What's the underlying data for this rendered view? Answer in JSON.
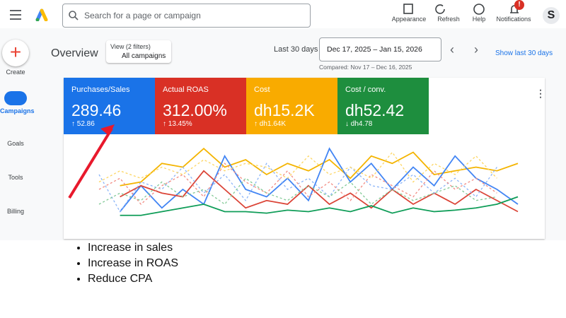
{
  "header": {
    "search_placeholder": "Search for a page or campaign",
    "actions": [
      "Appearance",
      "Refresh",
      "Help",
      "Notifications"
    ],
    "notification_badge": "!",
    "avatar": "S"
  },
  "nav": [
    "Create",
    "Campaigns",
    "Goals",
    "Tools",
    "Billing"
  ],
  "toolbar": {
    "title": "Overview",
    "filter_label": "View (2 filters)",
    "filter_value": "All campaigns",
    "range_label": "Last 30 days",
    "date_range": "Dec 17, 2025 – Jan 15, 2026",
    "compared": "Compared: Nov 17 – Dec 16, 2025",
    "show_last": "Show last 30 days"
  },
  "metrics": [
    {
      "name": "Purchases/Sales",
      "value": "289.46",
      "change": "↑ 52.86",
      "color": "#1a73e8"
    },
    {
      "name": "Actual ROAS",
      "value": "312.00%",
      "change": "↑ 13.45%",
      "color": "#d93025"
    },
    {
      "name": "Cost",
      "value": "dh15.2K",
      "change": "↑ dh1.64K",
      "color": "#f9ab00"
    },
    {
      "name": "Cost / conv.",
      "value": "dh52.42",
      "change": "↓ dh4.78",
      "color": "#1e8e3e"
    }
  ],
  "chart": {
    "type": "line",
    "ylim": [
      0,
      100
    ],
    "series": [
      {
        "color": "#f4b400",
        "dashed": false,
        "values": [
          null,
          45,
          50,
          75,
          70,
          95,
          70,
          80,
          60,
          75,
          65,
          80,
          55,
          85,
          75,
          90,
          60,
          65,
          70,
          65,
          75
        ]
      },
      {
        "color": "#4285f4",
        "dashed": false,
        "values": [
          null,
          10,
          45,
          15,
          40,
          20,
          85,
          40,
          30,
          55,
          25,
          95,
          50,
          75,
          40,
          70,
          45,
          85,
          55,
          40,
          20
        ]
      },
      {
        "color": "#db4437",
        "dashed": false,
        "values": [
          null,
          30,
          45,
          35,
          30,
          65,
          40,
          15,
          25,
          20,
          45,
          20,
          35,
          15,
          40,
          20,
          35,
          20,
          40,
          25,
          10
        ]
      },
      {
        "color": "#0f9d58",
        "dashed": false,
        "values": [
          null,
          5,
          5,
          10,
          15,
          20,
          10,
          10,
          8,
          12,
          10,
          15,
          10,
          18,
          8,
          15,
          10,
          12,
          15,
          20,
          30
        ]
      },
      {
        "color": "#8ab4f8",
        "dashed": true,
        "values": [
          60,
          10,
          50,
          40,
          70,
          35,
          60,
          25,
          75,
          40,
          55,
          30,
          70,
          45,
          40,
          60,
          35,
          55,
          30,
          70,
          null
        ]
      },
      {
        "color": "#f28b82",
        "dashed": true,
        "values": [
          40,
          55,
          20,
          45,
          60,
          30,
          75,
          50,
          35,
          65,
          30,
          50,
          25,
          60,
          45,
          30,
          65,
          40,
          55,
          35,
          null
        ]
      },
      {
        "color": "#fdd663",
        "dashed": true,
        "values": [
          50,
          65,
          55,
          70,
          60,
          80,
          65,
          75,
          70,
          55,
          85,
          60,
          70,
          55,
          90,
          50,
          75,
          60,
          85,
          55,
          null
        ]
      },
      {
        "color": "#81c995",
        "dashed": true,
        "values": [
          20,
          35,
          25,
          50,
          30,
          40,
          20,
          55,
          35,
          25,
          45,
          30,
          50,
          20,
          40,
          25,
          35,
          45,
          25,
          30,
          null
        ]
      }
    ]
  },
  "bullets": [
    "Increase in sales",
    "Increase in ROAS",
    "Reduce CPA"
  ]
}
